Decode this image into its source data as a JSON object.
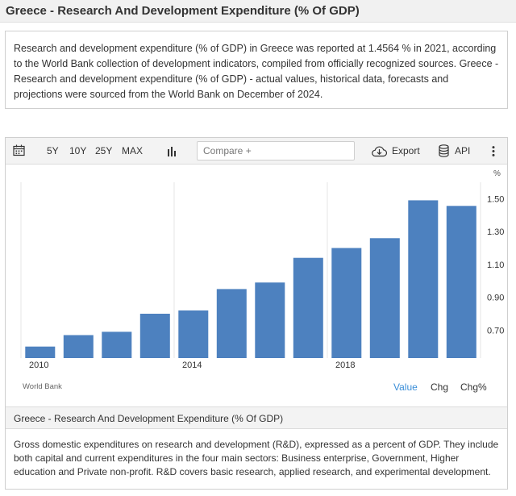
{
  "header": {
    "title": "Greece - Research And Development Expenditure (% Of GDP)"
  },
  "summary": {
    "text": "Research and development expenditure (% of GDP) in Greece was reported at 1.4564 % in 2021, according to the World Bank collection of development indicators, compiled from officially recognized sources. Greece - Research and development expenditure (% of GDP) - actual values, historical data, forecasts and projections were sourced from the World Bank on December of 2024."
  },
  "toolbar": {
    "calendar_icon": "calendar-icon",
    "ranges": [
      "5Y",
      "10Y",
      "25Y",
      "MAX"
    ],
    "chart_type_icon": "bar-chart-icon",
    "compare_placeholder": "Compare +",
    "export_icon": "cloud-download-icon",
    "export_label": "Export",
    "api_icon": "database-icon",
    "api_label": "API",
    "more_icon": "vertical-dots-icon"
  },
  "chart_data": {
    "type": "bar",
    "categories": [
      "2010",
      "2011",
      "2012",
      "2013",
      "2014",
      "2015",
      "2016",
      "2017",
      "2018",
      "2019",
      "2020",
      "2021"
    ],
    "values": [
      0.6,
      0.67,
      0.69,
      0.8,
      0.82,
      0.95,
      0.99,
      1.14,
      1.2,
      1.26,
      1.49,
      1.4564
    ],
    "x_tick_labels": [
      "2010",
      "2014",
      "2018"
    ],
    "y_unit": "%",
    "y_ticks": [
      "0.70",
      "0.90",
      "1.10",
      "1.30",
      "1.50"
    ],
    "ylim": [
      0.53,
      1.6
    ],
    "axis_side": "right",
    "grid": "vertical",
    "bar_color": "#4d81bf"
  },
  "chart_footer": {
    "source": "World Bank",
    "tabs": [
      "Value",
      "Chg",
      "Chg%"
    ],
    "active_tab_color": "#3a8ed8"
  },
  "indicator": {
    "title": "Greece - Research And Development Expenditure (% Of GDP)",
    "definition": "Gross domestic expenditures on research and development (R&D), expressed as a percent of GDP. They include both capital and current expenditures in the four main sectors: Business enterprise, Government, Higher education and Private non-profit. R&D covers basic research, applied research, and experimental development."
  }
}
